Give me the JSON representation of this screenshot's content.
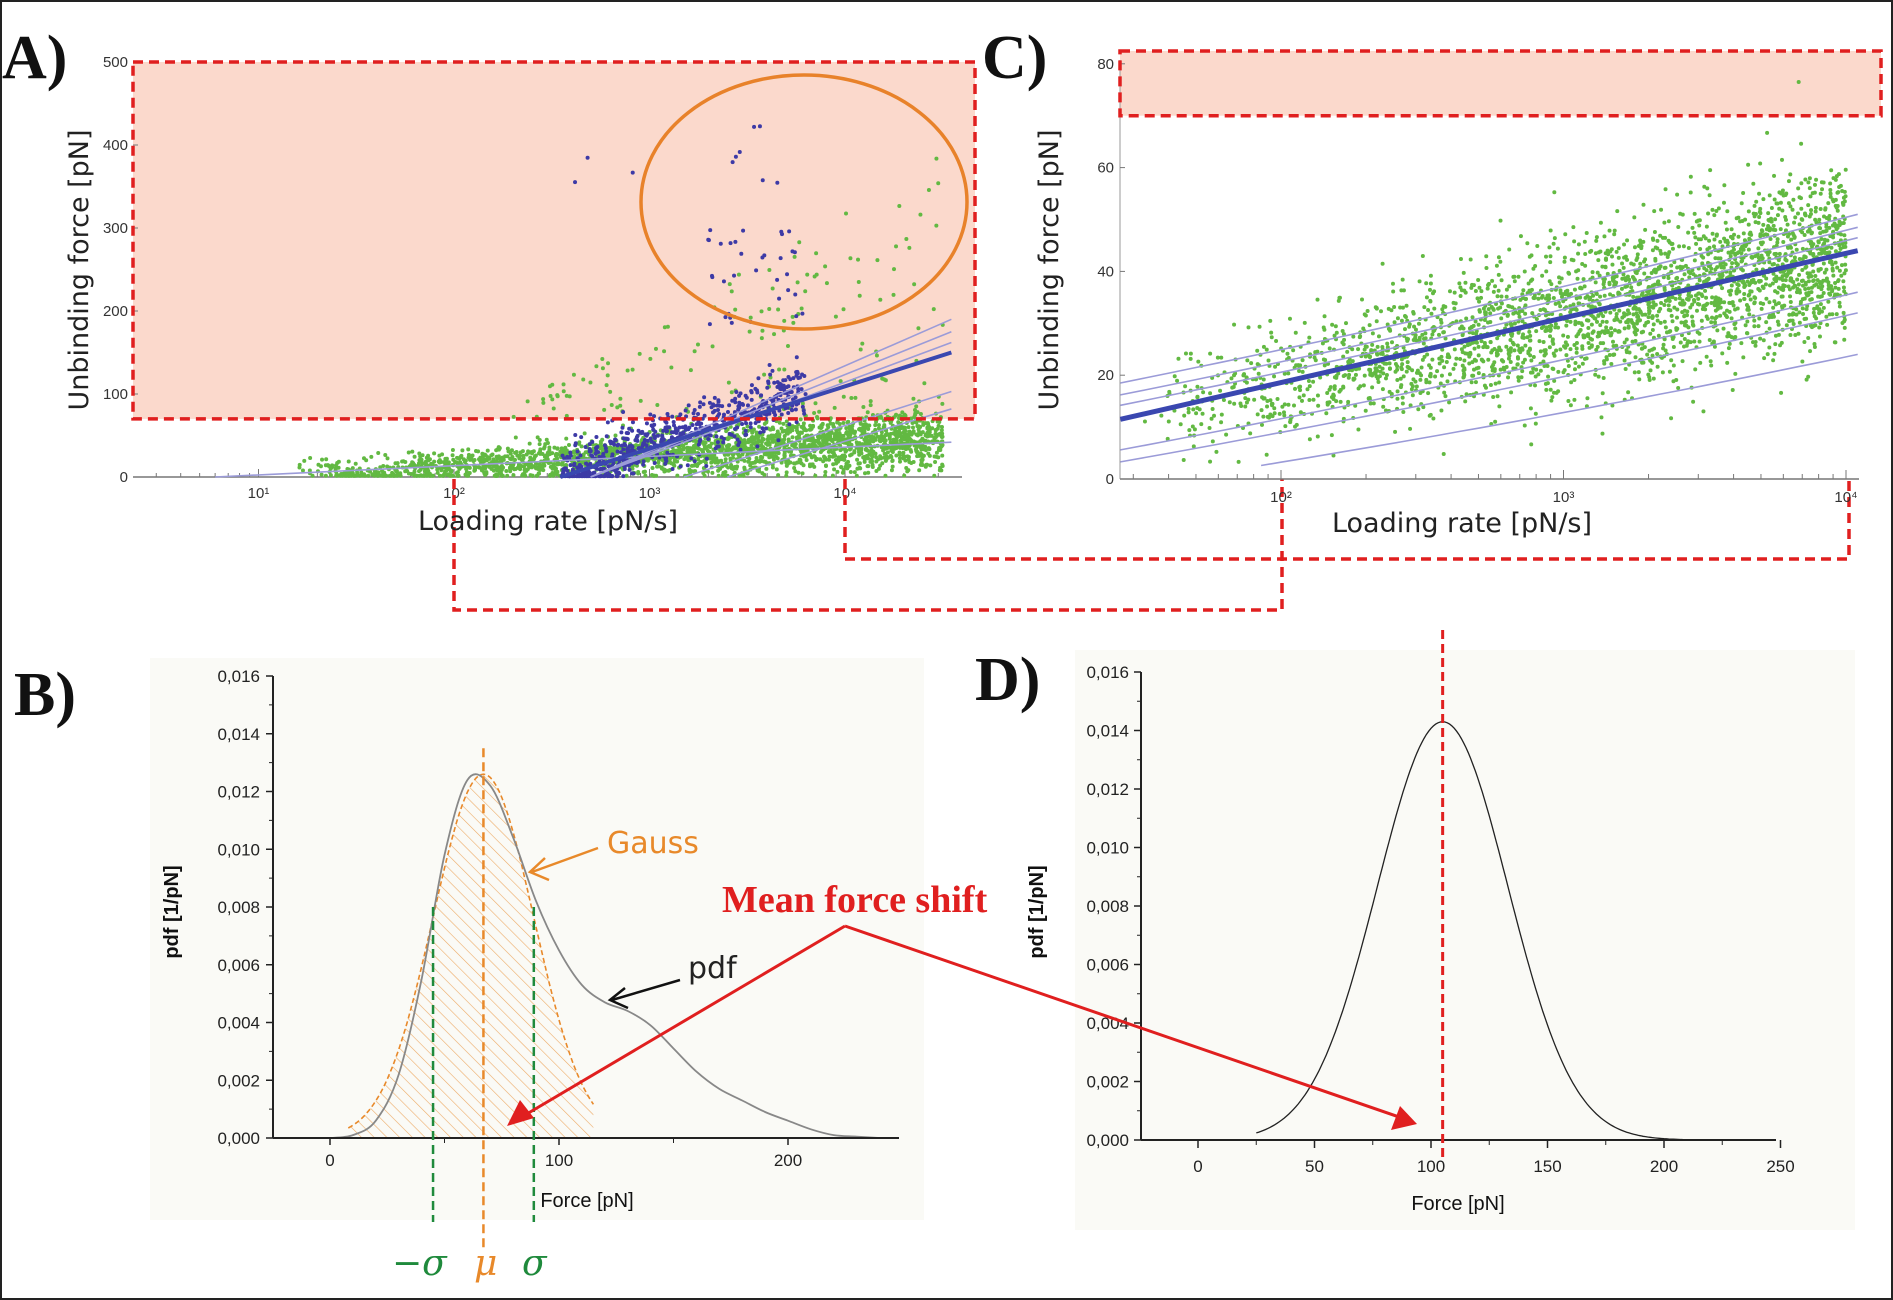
{
  "colors": {
    "highlight_fill": "#fbd9cc",
    "highlight_border": "#e01f1f",
    "green_points": "#62b942",
    "purple_points": "#3d3aa6",
    "fit_line": "#3a47b0",
    "confidence_lines": "#9b9bd8",
    "circle": "#e8822a",
    "gauss": "#e8892a",
    "sigma": "#1f8a3c",
    "pdf": "#888888",
    "arrow": "#e01f1f"
  },
  "chart_data": [
    {
      "panel": "A)",
      "type": "scatter",
      "xlabel": "Loading rate [pN/s]",
      "ylabel": "Unbinding force [pN]",
      "xscale": "log",
      "xlim": [
        2.3,
        40000
      ],
      "ylim": [
        0,
        500
      ],
      "xticks": [
        "10¹",
        "10²",
        "10³",
        "10⁴"
      ],
      "xtick_values": [
        10,
        100,
        1000,
        10000
      ],
      "yticks": [
        "0",
        "100",
        "200",
        "300",
        "400",
        "500"
      ],
      "ytick_values": [
        0,
        100,
        200,
        300,
        400,
        500
      ],
      "series_colors": [
        "green",
        "purple"
      ],
      "fit_line": {
        "from": [
          350,
          0
        ],
        "to": [
          35000,
          150
        ]
      },
      "confidence_lines": [
        {
          "from": [
            500,
            0
          ],
          "to": [
            35000,
            190
          ]
        },
        {
          "from": [
            500,
            0
          ],
          "to": [
            35000,
            175
          ]
        },
        {
          "from": [
            500,
            0
          ],
          "to": [
            35000,
            162
          ]
        },
        {
          "from": [
            1500,
            0
          ],
          "to": [
            35000,
            103
          ]
        },
        {
          "from": [
            2500,
            0
          ],
          "to": [
            35000,
            82
          ]
        },
        {
          "from": [
            6,
            0
          ],
          "to": [
            35000,
            42
          ]
        }
      ],
      "highlight_region": {
        "force_min": 70,
        "force_max": 500
      },
      "circled_region": {
        "loading_rate_center": 6000,
        "force_center": 330
      }
    },
    {
      "panel": "C)",
      "type": "scatter",
      "xlabel": "Loading rate [pN/s]",
      "ylabel": "Unbinding force [pN]",
      "xscale": "log",
      "xlim": [
        27,
        11000
      ],
      "ylim": [
        0,
        82
      ],
      "xticks": [
        "10²",
        "10³",
        "10⁴"
      ],
      "xtick_values": [
        100,
        1000,
        10000
      ],
      "yticks": [
        "0",
        "20",
        "40",
        "60",
        "80"
      ],
      "ytick_values": [
        0,
        20,
        40,
        60,
        80
      ],
      "fit_line": {
        "from": [
          27,
          11.5
        ],
        "to": [
          11000,
          44
        ]
      },
      "confidence_lines": [
        {
          "from": [
            27,
            18.5
          ],
          "to": [
            11000,
            51
          ]
        },
        {
          "from": [
            27,
            16.2
          ],
          "to": [
            11000,
            48.5
          ]
        },
        {
          "from": [
            27,
            14.2
          ],
          "to": [
            11000,
            46.5
          ]
        },
        {
          "from": [
            27,
            5.6
          ],
          "to": [
            11000,
            36
          ]
        },
        {
          "from": [
            27,
            3.3
          ],
          "to": [
            11000,
            32
          ]
        },
        {
          "from": [
            85,
            2.6
          ],
          "to": [
            11000,
            24
          ]
        }
      ],
      "highlight_region": {
        "force_min": 70,
        "force_max": 82
      }
    },
    {
      "panel": "B)",
      "type": "line",
      "xlabel": "Force [pN]",
      "ylabel": "pdf [1/pN]",
      "xlim": [
        -22,
        248
      ],
      "ylim": [
        0,
        0.016
      ],
      "xticks": [
        "0",
        "100",
        "200"
      ],
      "xtick_values": [
        0,
        100,
        200
      ],
      "yticks": [
        "0,000",
        "0,002",
        "0,004",
        "0,006",
        "0,008",
        "0,010",
        "0,012",
        "0,014",
        "0,016"
      ],
      "ytick_values": [
        0,
        0.002,
        0.004,
        0.006,
        0.008,
        0.01,
        0.012,
        0.014,
        0.016
      ],
      "pdf": {
        "x": [
          0,
          10,
          20,
          30,
          40,
          50,
          60,
          70,
          80,
          90,
          100,
          110,
          120,
          130,
          140,
          150,
          160,
          170,
          180,
          190,
          200,
          210,
          220,
          230,
          240
        ],
        "y": [
          0,
          0.0001,
          0.0006,
          0.0022,
          0.0055,
          0.0098,
          0.0124,
          0.0122,
          0.0104,
          0.0082,
          0.0065,
          0.0053,
          0.0047,
          0.0044,
          0.0039,
          0.0031,
          0.0023,
          0.0017,
          0.0013,
          0.0009,
          0.0006,
          0.0003,
          0.0001,
          5e-05,
          0
        ]
      },
      "gauss": {
        "mu": 67,
        "sigma": 22,
        "peak": 0.0126,
        "range": [
          8,
          115
        ]
      },
      "annotations": {
        "gauss": "Gauss",
        "pdf": "pdf",
        "minus_sigma": "−σ",
        "mu": "μ",
        "sigma": "σ"
      }
    },
    {
      "panel": "D)",
      "type": "line",
      "xlabel": "Force [pN]",
      "ylabel": "pdf [1/pN]",
      "xlim": [
        -25,
        248
      ],
      "ylim": [
        0,
        0.016
      ],
      "xticks": [
        "0",
        "50",
        "100",
        "150",
        "200",
        "250"
      ],
      "xtick_values": [
        0,
        50,
        100,
        150,
        200,
        250
      ],
      "yticks": [
        "0,000",
        "0,002",
        "0,004",
        "0,006",
        "0,008",
        "0,010",
        "0,012",
        "0,014",
        "0,016"
      ],
      "ytick_values": [
        0,
        0.002,
        0.004,
        0.006,
        0.008,
        0.01,
        0.012,
        0.014,
        0.016
      ],
      "gauss": {
        "mu": 105,
        "sigma": 28,
        "peak": 0.0143,
        "range": [
          25,
          208
        ]
      },
      "mean_marker": 105
    }
  ],
  "annotation": {
    "mean_shift": "Mean force shift"
  }
}
